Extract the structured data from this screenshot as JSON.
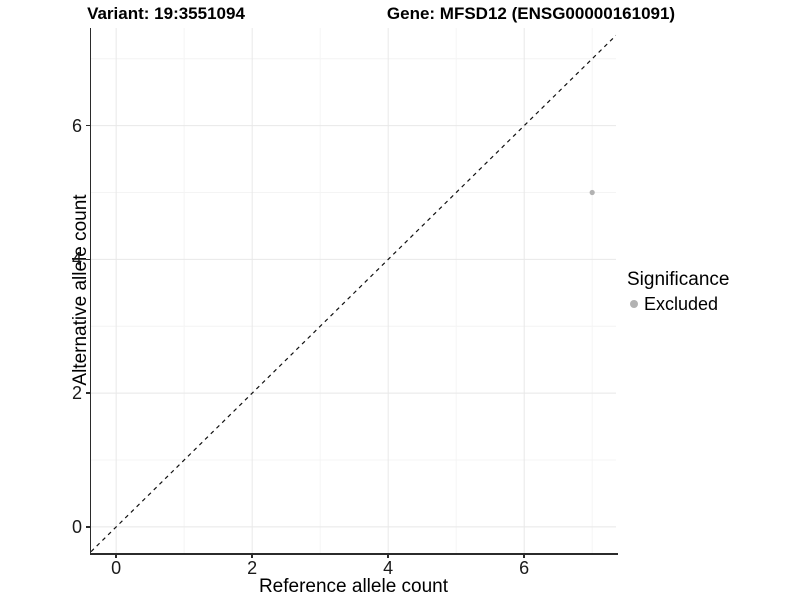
{
  "chart_data": {
    "type": "scatter",
    "titles": {
      "left": "Variant: 19:3551094",
      "right": "Gene: MFSD12 (ENSG00000161091)"
    },
    "x": {
      "label": "Reference allele count",
      "ticks": [
        0,
        2,
        4,
        6
      ],
      "minor_ticks": [
        1,
        3,
        5,
        7
      ],
      "range": [
        -0.37,
        7.35
      ]
    },
    "y": {
      "label": "Alternative allele count",
      "ticks": [
        0,
        2,
        4,
        6
      ],
      "minor_ticks": [
        1,
        3,
        5,
        7
      ],
      "range": [
        -0.39,
        7.46
      ]
    },
    "points": [
      {
        "x": 7,
        "y": 5,
        "significance": "Excluded"
      }
    ],
    "identity_line": {
      "style": "dashed",
      "equation": "y = x"
    },
    "legend": {
      "title": "Significance",
      "entries": [
        {
          "label": "Excluded"
        }
      ],
      "position": "right"
    },
    "grid": {
      "major": true,
      "minor": true
    },
    "colors": {
      "point": "#b2b2b2",
      "grid_major": "#e8e8e8",
      "grid_minor": "#f4f4f4",
      "axis": "#2b2b2b",
      "identity_line": "#111111"
    }
  }
}
